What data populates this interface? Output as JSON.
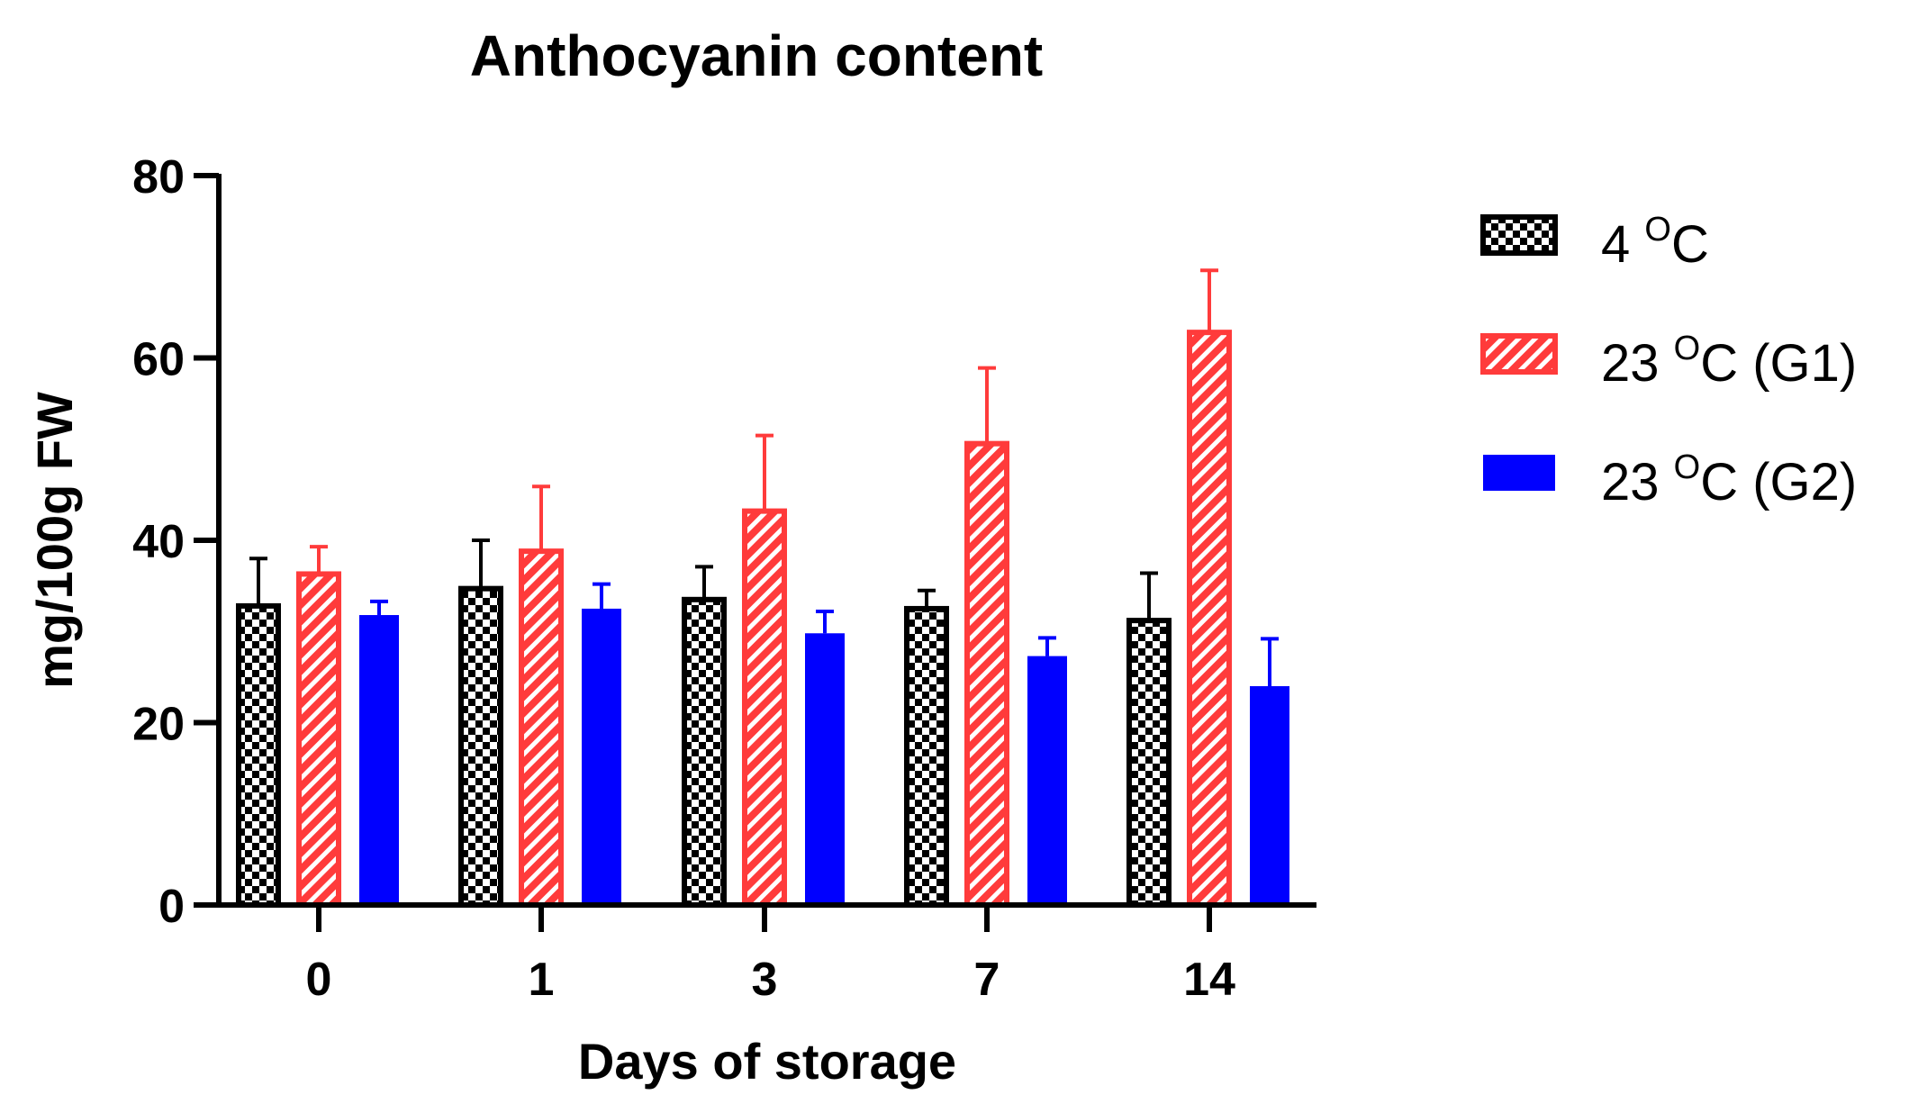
{
  "chart_data": {
    "type": "bar",
    "title": "Anthocyanin content",
    "xlabel": "Days of storage",
    "ylabel": "mg/100g FW",
    "ylim": [
      0,
      80
    ],
    "yticks": [
      0,
      20,
      40,
      60,
      80
    ],
    "categories": [
      "0",
      "1",
      "3",
      "7",
      "14"
    ],
    "grid": false,
    "legend_position": "right",
    "series": [
      {
        "name": "4 °C",
        "legend_main": "4 ",
        "legend_sup": "O",
        "legend_rest": "C",
        "values": [
          32.8,
          34.7,
          33.5,
          32.5,
          31.2
        ],
        "errors": [
          5.2,
          5.3,
          3.6,
          2.0,
          5.2
        ],
        "color": "#000000",
        "pattern": "checker"
      },
      {
        "name": "23 °C (G1)",
        "legend_main": "23 ",
        "legend_sup": "O",
        "legend_rest": "C (G1)",
        "values": [
          36.3,
          38.8,
          43.2,
          50.6,
          62.8
        ],
        "errors": [
          3.0,
          7.1,
          8.3,
          8.3,
          6.8
        ],
        "color": "#ff3b3b",
        "pattern": "hatch"
      },
      {
        "name": "23 °C (G2)",
        "legend_main": "23 ",
        "legend_sup": "O",
        "legend_rest": "C (G2)",
        "values": [
          31.8,
          32.5,
          29.8,
          27.3,
          24.0
        ],
        "errors": [
          1.5,
          2.7,
          2.4,
          2.0,
          5.2
        ],
        "color": "#0000ff",
        "pattern": "solid"
      }
    ]
  }
}
